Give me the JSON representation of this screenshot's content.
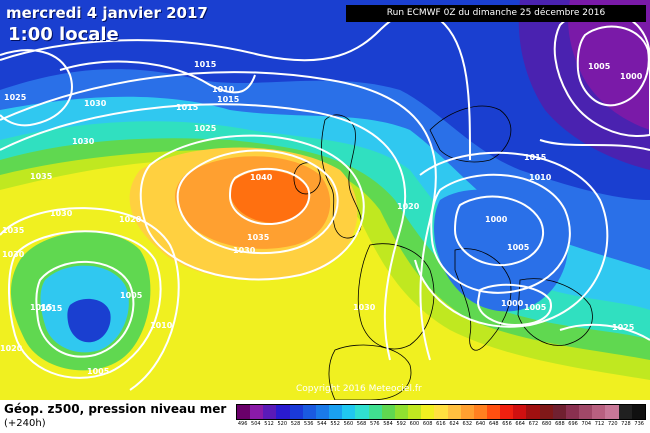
{
  "header": {
    "date_label": "mercredi 4 janvier 2017",
    "time_label": "1:00 locale",
    "run_label": "Run ECMWF 0Z du dimanche 25 décembre 2016"
  },
  "copyright": "Copyright 2016 Meteociel.fr",
  "legend": {
    "title": "Géop. z500, pression niveau mer",
    "subtitle": "(+240h)",
    "tick_values": [
      "496",
      "504",
      "512",
      "520",
      "528",
      "536",
      "544",
      "552",
      "560",
      "568",
      "576",
      "584",
      "592",
      "600",
      "608",
      "616",
      "624",
      "632",
      "640",
      "648",
      "656",
      "664",
      "672",
      "680",
      "688",
      "696",
      "704",
      "712",
      "720",
      "728",
      "736"
    ],
    "colors": [
      "#6a006a",
      "#8a1aa8",
      "#5a1ab8",
      "#2a1ad0",
      "#1a3ad8",
      "#1a5ae0",
      "#1a7ae8",
      "#1aa0f0",
      "#20c8f0",
      "#30e0d0",
      "#40e090",
      "#60d850",
      "#90e030",
      "#c0e820",
      "#f0f020",
      "#ffe040",
      "#ffc040",
      "#ffa030",
      "#ff8020",
      "#ff5010",
      "#f02010",
      "#d01010",
      "#a01010",
      "#801818",
      "#702030",
      "#8a3050",
      "#a04868",
      "#b86080",
      "#c87898",
      "#202020",
      "#101010"
    ]
  },
  "pressure_labels": [
    "1040",
    "1035",
    "1030",
    "1025",
    "1020",
    "1015",
    "1010",
    "1005",
    "1000"
  ],
  "map_colors": {
    "deep_blue": "#1a3fd0",
    "blue": "#2a70e8",
    "cyan": "#30c8f0",
    "teal": "#30e0c0",
    "green": "#60d850",
    "yellow_green": "#c0e820",
    "yellow": "#f0f020",
    "light_orange": "#ffd040",
    "orange": "#ffa030",
    "dark_orange": "#ff7010",
    "purple": "#7a1aa8",
    "land_line": "#000000",
    "isobar": "#ffffff"
  }
}
